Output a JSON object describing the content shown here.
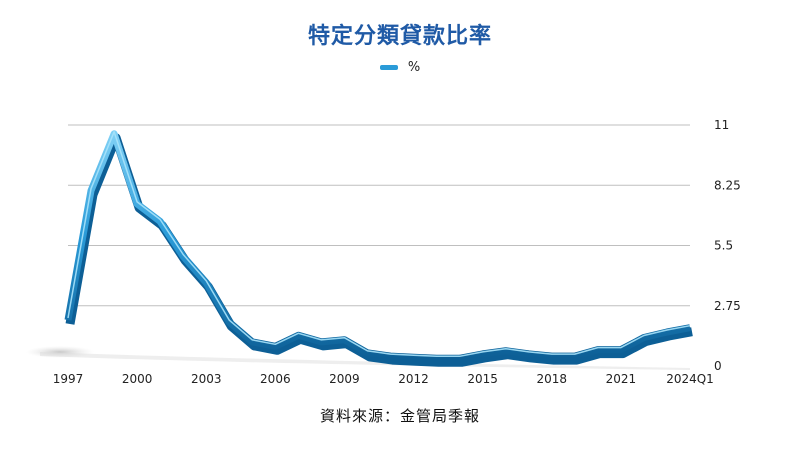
{
  "title": "特定分類貸款比率",
  "source": "資料來源：金管局季報",
  "colors": {
    "title": "#1f5aa6",
    "line": "#2a9bd8",
    "line_dark": "#0d5f96",
    "grid": "#bfbfbf"
  },
  "chart_data": {
    "type": "line",
    "title": "特定分類貸款比率",
    "legend_position": "top-center",
    "grid": true,
    "y_axis_side": "right",
    "ylim": [
      0,
      11
    ],
    "yticks": [
      "11",
      "8.25",
      "5.5",
      "2.75",
      "0"
    ],
    "xticks": [
      "1997",
      "2000",
      "2003",
      "2006",
      "2009",
      "2012",
      "2015",
      "2018",
      "2021",
      "2024Q1"
    ],
    "series": [
      {
        "name": "%",
        "x": [
          "1997",
          "1998",
          "1999",
          "2000",
          "2001",
          "2002",
          "2003",
          "2004",
          "2005",
          "2006",
          "2007",
          "2008",
          "2009",
          "2010",
          "2011",
          "2012",
          "2013",
          "2014",
          "2015",
          "2016",
          "2017",
          "2018",
          "2019",
          "2020",
          "2021",
          "2022",
          "2023",
          "2024Q1"
        ],
        "values": [
          2.1,
          8.0,
          10.6,
          7.4,
          6.6,
          5.0,
          3.8,
          2.0,
          1.1,
          0.9,
          1.4,
          1.1,
          1.2,
          0.6,
          0.45,
          0.4,
          0.35,
          0.35,
          0.55,
          0.7,
          0.55,
          0.45,
          0.45,
          0.75,
          0.75,
          1.3,
          1.55,
          1.75
        ]
      }
    ]
  }
}
